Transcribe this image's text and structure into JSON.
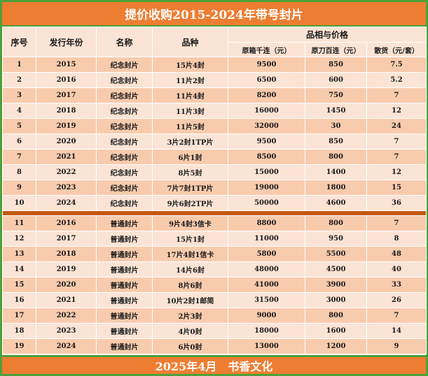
{
  "title": "提价收购2015-2024年带号封片",
  "headers": {
    "index": "序号",
    "year": "发行年份",
    "name": "名称",
    "variety": "品种",
    "quality_price": "品相与价格",
    "col_thousand": "原箱千连（元）",
    "col_hundred": "原刀百连（元）",
    "col_loose": "散货（元/套）"
  },
  "rows_commemorative": [
    {
      "index": "1",
      "year": "2015",
      "name": "纪念封片",
      "variety": "15片4封",
      "thousand": "9500",
      "hundred": "850",
      "loose": "7.5"
    },
    {
      "index": "2",
      "year": "2016",
      "name": "纪念封片",
      "variety": "11片2封",
      "thousand": "6500",
      "hundred": "600",
      "loose": "5.2"
    },
    {
      "index": "3",
      "year": "2017",
      "name": "纪念封片",
      "variety": "11片4封",
      "thousand": "8200",
      "hundred": "750",
      "loose": "7"
    },
    {
      "index": "4",
      "year": "2018",
      "name": "纪念封片",
      "variety": "11片3封",
      "thousand": "16000",
      "hundred": "1450",
      "loose": "12"
    },
    {
      "index": "5",
      "year": "2019",
      "name": "纪念封片",
      "variety": "11片5封",
      "thousand": "32000",
      "hundred": "30",
      "loose": "24"
    },
    {
      "index": "6",
      "year": "2020",
      "name": "纪念封片",
      "variety": "3片2封1TP片",
      "thousand": "9500",
      "hundred": "850",
      "loose": "7"
    },
    {
      "index": "7",
      "year": "2021",
      "name": "纪念封片",
      "variety": "6片1封",
      "thousand": "8500",
      "hundred": "800",
      "loose": "7"
    },
    {
      "index": "8",
      "year": "2022",
      "name": "纪念封片",
      "variety": "8片5封",
      "thousand": "15000",
      "hundred": "1400",
      "loose": "12"
    },
    {
      "index": "9",
      "year": "2023",
      "name": "纪念封片",
      "variety": "7片7封1TP片",
      "thousand": "19000",
      "hundred": "1800",
      "loose": "15"
    },
    {
      "index": "10",
      "year": "2024",
      "name": "纪念封片",
      "variety": "9片6封2TP片",
      "thousand": "50000",
      "hundred": "4600",
      "loose": "36"
    }
  ],
  "rows_regular": [
    {
      "index": "11",
      "year": "2016",
      "name": "普通封片",
      "variety": "9片4封3信卡",
      "thousand": "8800",
      "hundred": "800",
      "loose": "7"
    },
    {
      "index": "12",
      "year": "2017",
      "name": "普通封片",
      "variety": "15片1封",
      "thousand": "11000",
      "hundred": "950",
      "loose": "8"
    },
    {
      "index": "13",
      "year": "2018",
      "name": "普通封片",
      "variety": "17片4封1信卡",
      "thousand": "5800",
      "hundred": "5500",
      "loose": "48"
    },
    {
      "index": "14",
      "year": "2019",
      "name": "普通封片",
      "variety": "14片6封",
      "thousand": "48000",
      "hundred": "4500",
      "loose": "40"
    },
    {
      "index": "15",
      "year": "2020",
      "name": "普通封片",
      "variety": "8片6封",
      "thousand": "41000",
      "hundred": "3900",
      "loose": "33"
    },
    {
      "index": "16",
      "year": "2021",
      "name": "普通封片",
      "variety": "10片2封1邮简",
      "thousand": "31500",
      "hundred": "3000",
      "loose": "26"
    },
    {
      "index": "17",
      "year": "2022",
      "name": "普通封片",
      "variety": "2片3封",
      "thousand": "9000",
      "hundred": "800",
      "loose": "7"
    },
    {
      "index": "18",
      "year": "2023",
      "name": "普通封片",
      "variety": "4片0封",
      "thousand": "18000",
      "hundred": "1600",
      "loose": "14"
    },
    {
      "index": "19",
      "year": "2024",
      "name": "普通封片",
      "variety": "6片0封",
      "thousand": "13000",
      "hundred": "1200",
      "loose": "9"
    }
  ],
  "footer": "2025年4月　书香文化",
  "colors": {
    "banner": "#ed7d31",
    "frame": "#4da03a",
    "row_dark": "#f8cbad",
    "row_light": "#fbe4d5",
    "separator": "#c55a11"
  }
}
